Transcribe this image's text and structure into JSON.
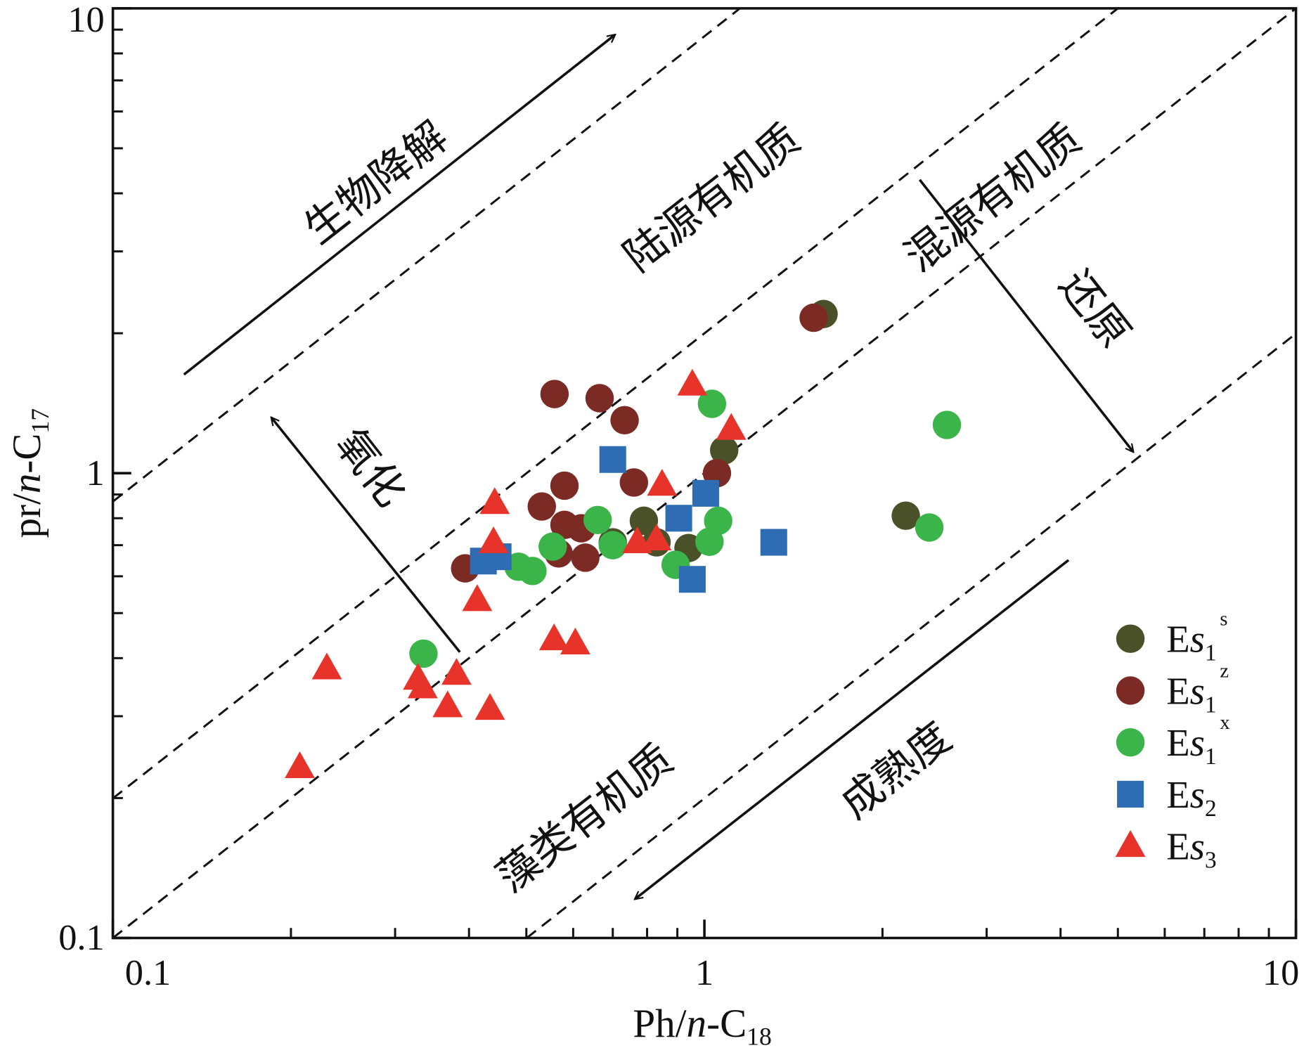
{
  "chart_data": {
    "type": "scatter",
    "xlabel": "Ph/n-C18",
    "ylabel": "pr/n-C17",
    "xscale": "log",
    "yscale": "log",
    "xlim": [
      0.1,
      10
    ],
    "ylim": [
      0.1,
      10
    ],
    "xticks": [
      0.1,
      1,
      10
    ],
    "yticks": [
      0.1,
      1,
      10
    ],
    "xminorticks": [
      0.2,
      0.3,
      0.4,
      0.5,
      0.6,
      0.7,
      0.8,
      0.9,
      2,
      3,
      4,
      5,
      6,
      7,
      8,
      9
    ],
    "yminorticks": [
      0.2,
      0.3,
      0.4,
      0.5,
      0.6,
      0.7,
      0.8,
      0.9,
      2,
      3,
      4,
      5,
      6,
      7,
      8,
      9
    ],
    "legend": "lower right",
    "series": [
      {
        "name": "Es1s",
        "marker": "circle",
        "color": "#4a5027",
        "x": [
          1.59,
          2.19,
          1.08,
          0.79,
          0.94,
          0.83,
          0.7
        ],
        "y": [
          2.2,
          0.81,
          1.12,
          0.79,
          0.69,
          0.71,
          0.71
        ]
      },
      {
        "name": "Es1z",
        "marker": "circle",
        "color": "#7b2a24",
        "x": [
          1.53,
          0.558,
          0.665,
          0.733,
          1.05,
          0.58,
          0.76,
          0.531,
          0.58,
          0.619,
          0.567,
          0.629,
          0.394
        ],
        "y": [
          2.16,
          1.48,
          1.45,
          1.3,
          1.0,
          0.94,
          0.955,
          0.848,
          0.774,
          0.761,
          0.672,
          0.658,
          0.624
        ]
      },
      {
        "name": "Es1x",
        "marker": "circle",
        "color": "#3bb54a",
        "x": [
          1.03,
          2.57,
          0.335,
          0.485,
          0.512,
          0.554,
          0.66,
          0.7,
          0.894,
          1.055,
          1.02,
          2.4
        ],
        "y": [
          1.41,
          1.27,
          0.409,
          0.629,
          0.616,
          0.695,
          0.793,
          0.7,
          0.635,
          0.79,
          0.712,
          0.764
        ]
      },
      {
        "name": "Es2",
        "marker": "square",
        "color": "#2e6db4",
        "x": [
          0.7,
          1.005,
          0.905,
          1.31,
          0.954,
          0.423,
          0.448
        ],
        "y": [
          1.07,
          0.905,
          0.8,
          0.71,
          0.591,
          0.647,
          0.661
        ]
      },
      {
        "name": "Es3",
        "marker": "triangle",
        "color": "#e8332a",
        "x": [
          0.954,
          1.11,
          0.848,
          0.442,
          0.44,
          0.77,
          0.83,
          0.413,
          0.557,
          0.605,
          0.23,
          0.328,
          0.334,
          0.381,
          0.368,
          0.434,
          0.207
        ],
        "y": [
          1.55,
          1.245,
          0.944,
          0.862,
          0.71,
          0.71,
          0.72,
          0.533,
          0.439,
          0.43,
          0.38,
          0.361,
          0.346,
          0.37,
          0.315,
          0.311,
          0.233
        ]
      }
    ],
    "annotations": [
      "生物降解",
      "陆源有机质",
      "混源有机质",
      "还原",
      "氧化",
      "藻类有机质",
      "成熟度"
    ]
  }
}
